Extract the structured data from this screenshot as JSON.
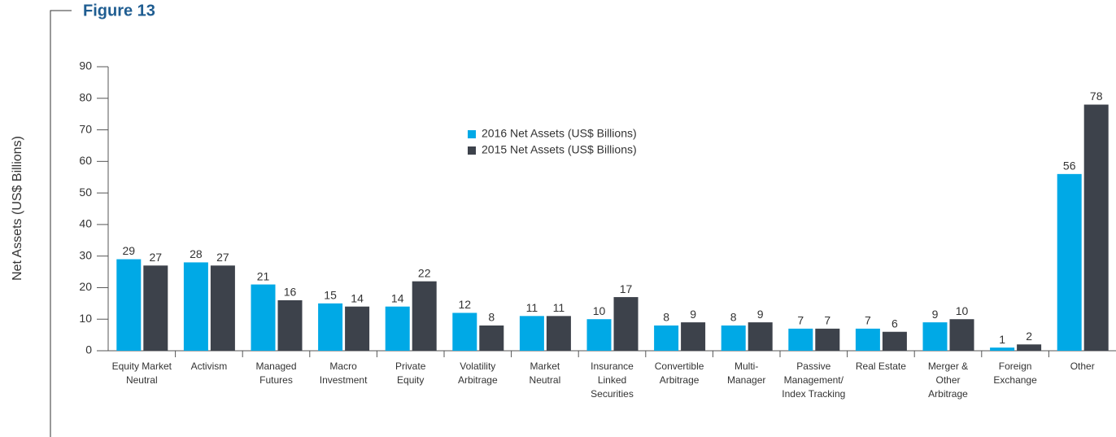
{
  "figure_label": "Figure 13",
  "chart_data": {
    "type": "bar",
    "ylabel": "Net Assets (US$ Billions)",
    "categories": [
      "Equity Market\nNeutral",
      "Activism",
      "Managed\nFutures",
      "Macro\nInvestment",
      "Private\nEquity",
      "Volatility\nArbitrage",
      "Market\nNeutral",
      "Insurance\nLinked\nSecurities",
      "Convertible\nArbitrage",
      "Multi-\nManager",
      "Passive\nManagement/\nIndex Tracking",
      "Real Estate",
      "Merger &\nOther\nArbitrage",
      "Foreign\nExchange",
      "Other"
    ],
    "series": [
      {
        "name": "2016 Net Assets (US$ Billions)",
        "color": "#00a9e6",
        "values": [
          29,
          28,
          21,
          15,
          14,
          12,
          11,
          10,
          8,
          8,
          7,
          7,
          9,
          1,
          56
        ]
      },
      {
        "name": "2015 Net Assets (US$ Billions)",
        "color": "#3d424b",
        "values": [
          27,
          27,
          16,
          14,
          22,
          8,
          11,
          17,
          9,
          9,
          7,
          6,
          10,
          2,
          78
        ]
      }
    ],
    "ylim": [
      0,
      90
    ],
    "yticks": [
      0,
      10,
      20,
      30,
      40,
      50,
      60,
      70,
      80,
      90
    ]
  }
}
